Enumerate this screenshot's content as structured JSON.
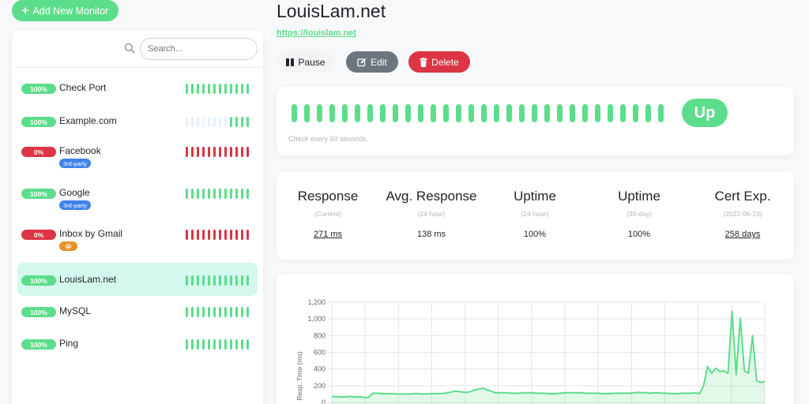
{
  "add_monitor_label": "Add New Monitor",
  "search": {
    "placeholder": "Search..."
  },
  "monitors": [
    {
      "name": "Check Port",
      "uptime": "100%",
      "status": "up",
      "tag": "",
      "beats": [
        "up",
        "up",
        "up",
        "up",
        "up",
        "up",
        "up",
        "up",
        "up",
        "up",
        "up",
        "up"
      ]
    },
    {
      "name": "Example.com",
      "uptime": "100%",
      "status": "up",
      "tag": "",
      "beats": [
        "empty",
        "empty",
        "empty",
        "empty",
        "empty",
        "empty",
        "empty",
        "empty",
        "up",
        "up",
        "up",
        "up"
      ]
    },
    {
      "name": "Facebook",
      "uptime": "0%",
      "status": "down",
      "tag": "3rd-party",
      "beats": [
        "down",
        "down",
        "down",
        "down",
        "down",
        "down",
        "down",
        "down",
        "down",
        "down",
        "down",
        "down"
      ]
    },
    {
      "name": "Google",
      "uptime": "100%",
      "status": "up",
      "tag": "3rd-party",
      "beats": [
        "up",
        "up",
        "up",
        "up",
        "up",
        "up",
        "up",
        "up",
        "up",
        "up",
        "up",
        "up"
      ]
    },
    {
      "name": "Inbox by Gmail",
      "uptime": "0%",
      "status": "down",
      "tag": "😭",
      "beats": [
        "down",
        "down",
        "down",
        "down",
        "down",
        "down",
        "down",
        "down",
        "down",
        "down",
        "down",
        "down"
      ]
    },
    {
      "name": "LouisLam.net",
      "uptime": "100%",
      "status": "up",
      "tag": "",
      "active": true,
      "beats": [
        "up",
        "up",
        "up",
        "up",
        "up",
        "up",
        "up",
        "up",
        "up",
        "up",
        "up",
        "up"
      ]
    },
    {
      "name": "MySQL",
      "uptime": "100%",
      "status": "up",
      "tag": "",
      "beats": [
        "up",
        "up",
        "up",
        "up",
        "up",
        "up",
        "up",
        "up",
        "up",
        "up",
        "up",
        "up"
      ]
    },
    {
      "name": "Ping",
      "uptime": "100%",
      "status": "up",
      "tag": "",
      "beats": [
        "up",
        "up",
        "up",
        "up",
        "up",
        "up",
        "up",
        "up",
        "up",
        "up",
        "up",
        "up"
      ]
    }
  ],
  "detail": {
    "title": "LouisLam.net",
    "url": "https://louislam.net",
    "pause_label": "Pause",
    "edit_label": "Edit",
    "delete_label": "Delete",
    "status": "Up",
    "beat_count": 30,
    "check_interval_text": "Check every 60 seconds.",
    "stats": [
      {
        "title": "Response",
        "sub": "(Current)",
        "value": "271 ms",
        "link": true
      },
      {
        "title": "Avg. Response",
        "sub": "(24-hour)",
        "value": "138 ms",
        "link": false
      },
      {
        "title": "Uptime",
        "sub": "(24-hour)",
        "value": "100%",
        "link": false
      },
      {
        "title": "Uptime",
        "sub": "(30-day)",
        "value": "100%",
        "link": false
      },
      {
        "title": "Cert Exp.",
        "sub": "(2022-06-23)",
        "value": "258 days",
        "link": true
      }
    ]
  },
  "colors": {
    "up": "#5cdd8b",
    "down": "#dc3545",
    "empty": "#e6f2fb",
    "tag": "#3f82e8",
    "accent": "#5cdd8b"
  },
  "chart_data": {
    "type": "area",
    "ylabel": "Resp. Time (ms)",
    "xlabel": "",
    "ylim": [
      0,
      1200
    ],
    "y_ticks": [
      "0",
      "200",
      "400",
      "600",
      "800",
      "1,000",
      "1,200"
    ],
    "grid": true,
    "series": [
      {
        "values": [
          70,
          70,
          65,
          65,
          70,
          70,
          65,
          68,
          60,
          60,
          110,
          110,
          105,
          105,
          105,
          105,
          100,
          100,
          100,
          100,
          105,
          105,
          100,
          100,
          105,
          105,
          105,
          105,
          115,
          120,
          135,
          130,
          125,
          120,
          130,
          150,
          160,
          170,
          150,
          135,
          115,
          115,
          115,
          115,
          110,
          110,
          110,
          115,
          115,
          115,
          110,
          110,
          110,
          105,
          105,
          105,
          110,
          115,
          115,
          115,
          115,
          115,
          110,
          110,
          110,
          110,
          105,
          105,
          105,
          110,
          110,
          110,
          110,
          110,
          115,
          120,
          115,
          115,
          110,
          115,
          115,
          110,
          110,
          105,
          105,
          105,
          110,
          110,
          110,
          115,
          105,
          200,
          430,
          350,
          410,
          370,
          380,
          350,
          1090,
          330,
          1010,
          380,
          350,
          800,
          260,
          240,
          250
        ]
      }
    ]
  }
}
